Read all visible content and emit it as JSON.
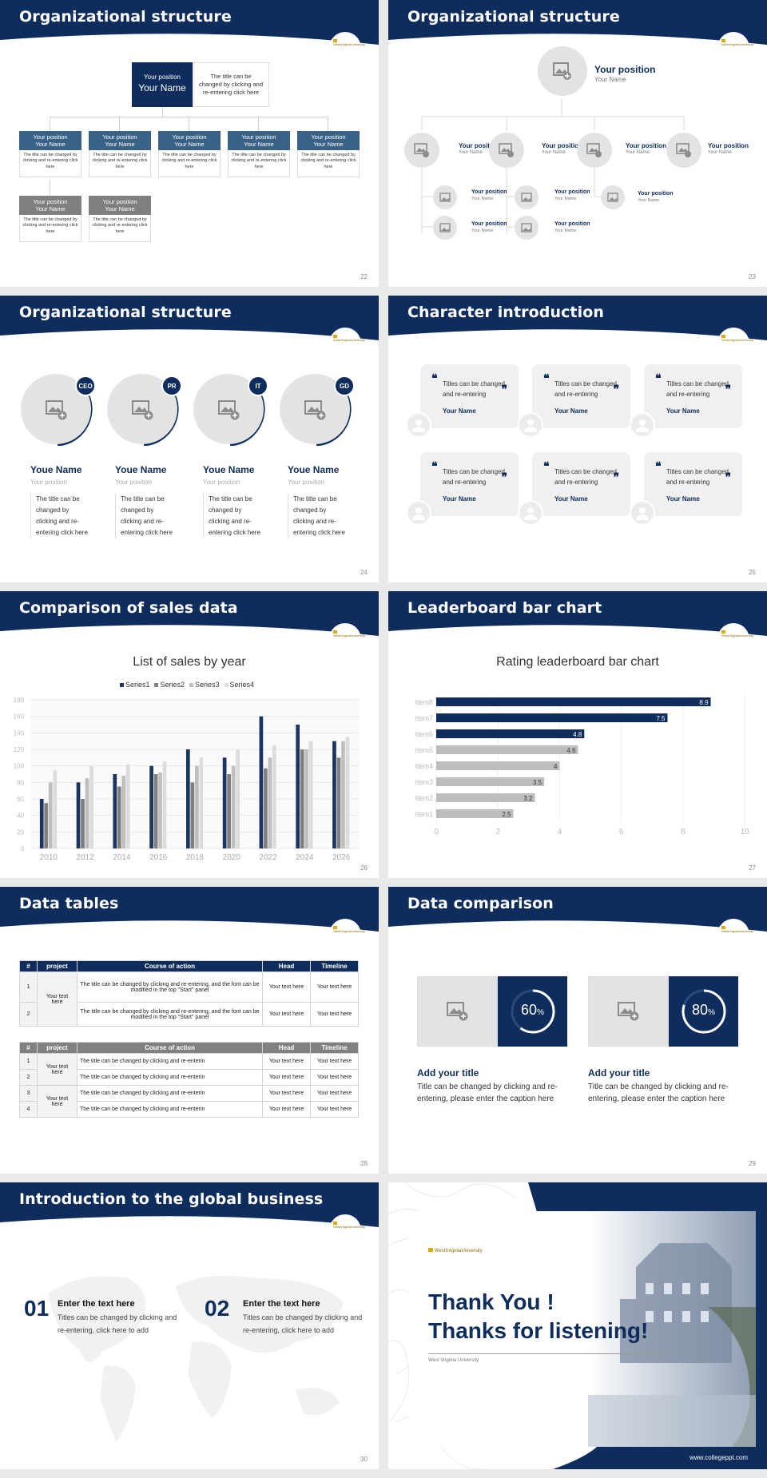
{
  "s22": {
    "title": "Organizational structure",
    "num": "22",
    "top": {
      "pos": "Your position",
      "name": "Your Name",
      "desc": "The title can be changed by clicking and re-entering click here"
    },
    "boxes": [
      {
        "pos": "Your position",
        "name": "Your Name",
        "desc": "The title can be changed by clicking and re-entering click here"
      },
      {
        "pos": "Your position",
        "name": "Your Name",
        "desc": "The title can be changed by clicking and re-entering click here"
      },
      {
        "pos": "Your position",
        "name": "Your Name",
        "desc": "The title can be changed by clicking and re-entering click here"
      },
      {
        "pos": "Your position",
        "name": "Your Name",
        "desc": "The title can be changed by clicking and re-entering click here"
      },
      {
        "pos": "Your position",
        "name": "Your Name",
        "desc": "The title can be changed by clicking and re-entering click here"
      },
      {
        "pos": "Your position",
        "name": "Your Name",
        "desc": "The title can be changed by clicking and re-entering click here"
      },
      {
        "pos": "Your position",
        "name": "Your Name",
        "desc": "The title can be changed by clicking and re-entering click here"
      }
    ]
  },
  "s23": {
    "title": "Organizational structure",
    "num": "23",
    "top": {
      "pos": "Your position",
      "name": "Your Name"
    },
    "level2": [
      {
        "pos": "Your position",
        "name": "Your Name"
      },
      {
        "pos": "Your position",
        "name": "Your Name"
      },
      {
        "pos": "Your position",
        "name": "Your Name"
      },
      {
        "pos": "Your position",
        "name": "Your Name"
      }
    ],
    "level3": [
      {
        "pos": "Your position",
        "name": "Your Name"
      },
      {
        "pos": "Your position",
        "name": "Your Name"
      },
      {
        "pos": "Your position",
        "name": "Your Name"
      },
      {
        "pos": "Your position",
        "name": "Your Name"
      },
      {
        "pos": "Your position",
        "name": "Your Name"
      }
    ]
  },
  "s24": {
    "title": "Organizational structure",
    "num": "24",
    "people": [
      {
        "badge": "CEO",
        "name": "Youe Name",
        "pos": "Your position",
        "desc": "The title can be changed by clicking and re-entering click here"
      },
      {
        "badge": "PR",
        "name": "Youe Name",
        "pos": "Your position",
        "desc": "The title can be changed by clicking and re-entering click here"
      },
      {
        "badge": "IT",
        "name": "Youe Name",
        "pos": "Your position",
        "desc": "The title can be changed by clicking and re-entering click here"
      },
      {
        "badge": "GD",
        "name": "Youe Name",
        "pos": "Your position",
        "desc": "The title can be changed by clicking and re-entering click here"
      }
    ]
  },
  "s25": {
    "title": "Character introduction",
    "num": "25",
    "cards": [
      {
        "text": "Titles can be changed and re-entering",
        "name": "Your Name"
      },
      {
        "text": "Titles can be changed and re-entering",
        "name": "Your Name"
      },
      {
        "text": "Titles can be changed and re-entering",
        "name": "Your Name"
      },
      {
        "text": "Titles can be changed and re-entering",
        "name": "Your Name"
      },
      {
        "text": "Titles can be changed and re-entering",
        "name": "Your Name"
      },
      {
        "text": "Titles can be changed and re-entering",
        "name": "Your Name"
      }
    ]
  },
  "s26": {
    "title": "Comparison of sales data",
    "num": "26"
  },
  "s27": {
    "title": "Leaderboard bar chart",
    "num": "27"
  },
  "s28": {
    "title": "Data tables",
    "num": "28",
    "headers": [
      "#",
      "project",
      "Course of action",
      "Head",
      "Timeline"
    ],
    "t1_project": "Your text here",
    "t1_rows": [
      {
        "n": "1",
        "action": "The title can be changed by clicking and re-entering, and the font can be modified in the top \"Start\" panel",
        "head": "Your text here",
        "time": "Your text here"
      },
      {
        "n": "2",
        "action": "The title can be changed by clicking and re-entering, and the font can be modified in the top \"Start\" panel",
        "head": "Your text here",
        "time": "Your text here"
      }
    ],
    "t2_projects": [
      "Your text here",
      "Your text here"
    ],
    "t2_rows": [
      {
        "n": "1",
        "action": "The title can be changed by clicking and re-enterin",
        "head": "Your text here",
        "time": "Your text here"
      },
      {
        "n": "2",
        "action": "The title can be changed by clicking and re-enterin",
        "head": "Your text here",
        "time": "Your text here"
      },
      {
        "n": "3",
        "action": "The title can be changed by clicking and re-enterin",
        "head": "Your text here",
        "time": "Your text here"
      },
      {
        "n": "4",
        "action": "The title can be changed by clicking and re-enterin",
        "head": "Your text here",
        "time": "Your text here"
      }
    ]
  },
  "s29": {
    "title": "Data comparison",
    "num": "29",
    "items": [
      {
        "pct": "60",
        "pct_value": 60,
        "title": "Add your title",
        "desc": "Title can be changed by clicking and re-entering, please enter the caption here"
      },
      {
        "pct": "80",
        "pct_value": 80,
        "title": "Add your title",
        "desc": "Title can be changed by clicking and re-entering, please enter the caption here"
      }
    ],
    "pct_sign": "%"
  },
  "s30": {
    "title": "Introduction to the global business",
    "num": "30",
    "items": [
      {
        "n": "01",
        "title": "Enter the text here",
        "desc": "Titles can be changed by clicking and re-entering, click here to add"
      },
      {
        "n": "02",
        "title": "Enter the text here",
        "desc": "Titles can be changed by clicking and re-entering, click here to add"
      }
    ]
  },
  "s31": {
    "logo": "WestVirginiaUniversity",
    "line1": "Thank You !",
    "line2": "Thanks for listening!",
    "sub": "West Virginia University",
    "url": "www.collegeppt.com"
  },
  "logo_text": "WestVirginiaUniversity",
  "chart_data": [
    {
      "type": "bar",
      "title": "List of sales by year",
      "categories": [
        "2010",
        "2012",
        "2014",
        "2016",
        "2018",
        "2020",
        "2022",
        "2024",
        "2026"
      ],
      "ylim": [
        0,
        180
      ],
      "yticks": [
        0,
        20,
        40,
        60,
        80,
        100,
        120,
        140,
        160,
        180
      ],
      "series": [
        {
          "name": "Series1",
          "color": "#1b3560",
          "values": [
            60,
            80,
            90,
            100,
            120,
            110,
            160,
            150,
            130
          ]
        },
        {
          "name": "Series2",
          "color": "#7f7f7f",
          "values": [
            55,
            60,
            75,
            90,
            80,
            90,
            97,
            120,
            110
          ]
        },
        {
          "name": "Series3",
          "color": "#bfbfbf",
          "values": [
            80,
            85,
            88,
            92,
            100,
            100,
            110,
            120,
            130
          ]
        },
        {
          "name": "Series4",
          "color": "#dcdcdc",
          "values": [
            95,
            100,
            102,
            105,
            110,
            120,
            125,
            130,
            135
          ]
        }
      ]
    },
    {
      "type": "bar",
      "orientation": "horizontal",
      "title": "Rating leaderboard bar chart",
      "categories": [
        "Item8",
        "Item7",
        "Item6",
        "Item5",
        "Item4",
        "Item3",
        "Item2",
        "Item1"
      ],
      "values": [
        8.9,
        7.5,
        4.8,
        4.6,
        4,
        3.5,
        3.2,
        2.5
      ],
      "xlim": [
        0,
        10
      ],
      "xticks": [
        0,
        2,
        4,
        6,
        8,
        10
      ],
      "colors": [
        "#0e2d5c",
        "#0e2d5c",
        "#0e2d5c",
        "#bdbdbd",
        "#bdbdbd",
        "#bdbdbd",
        "#bdbdbd",
        "#bdbdbd"
      ]
    }
  ]
}
